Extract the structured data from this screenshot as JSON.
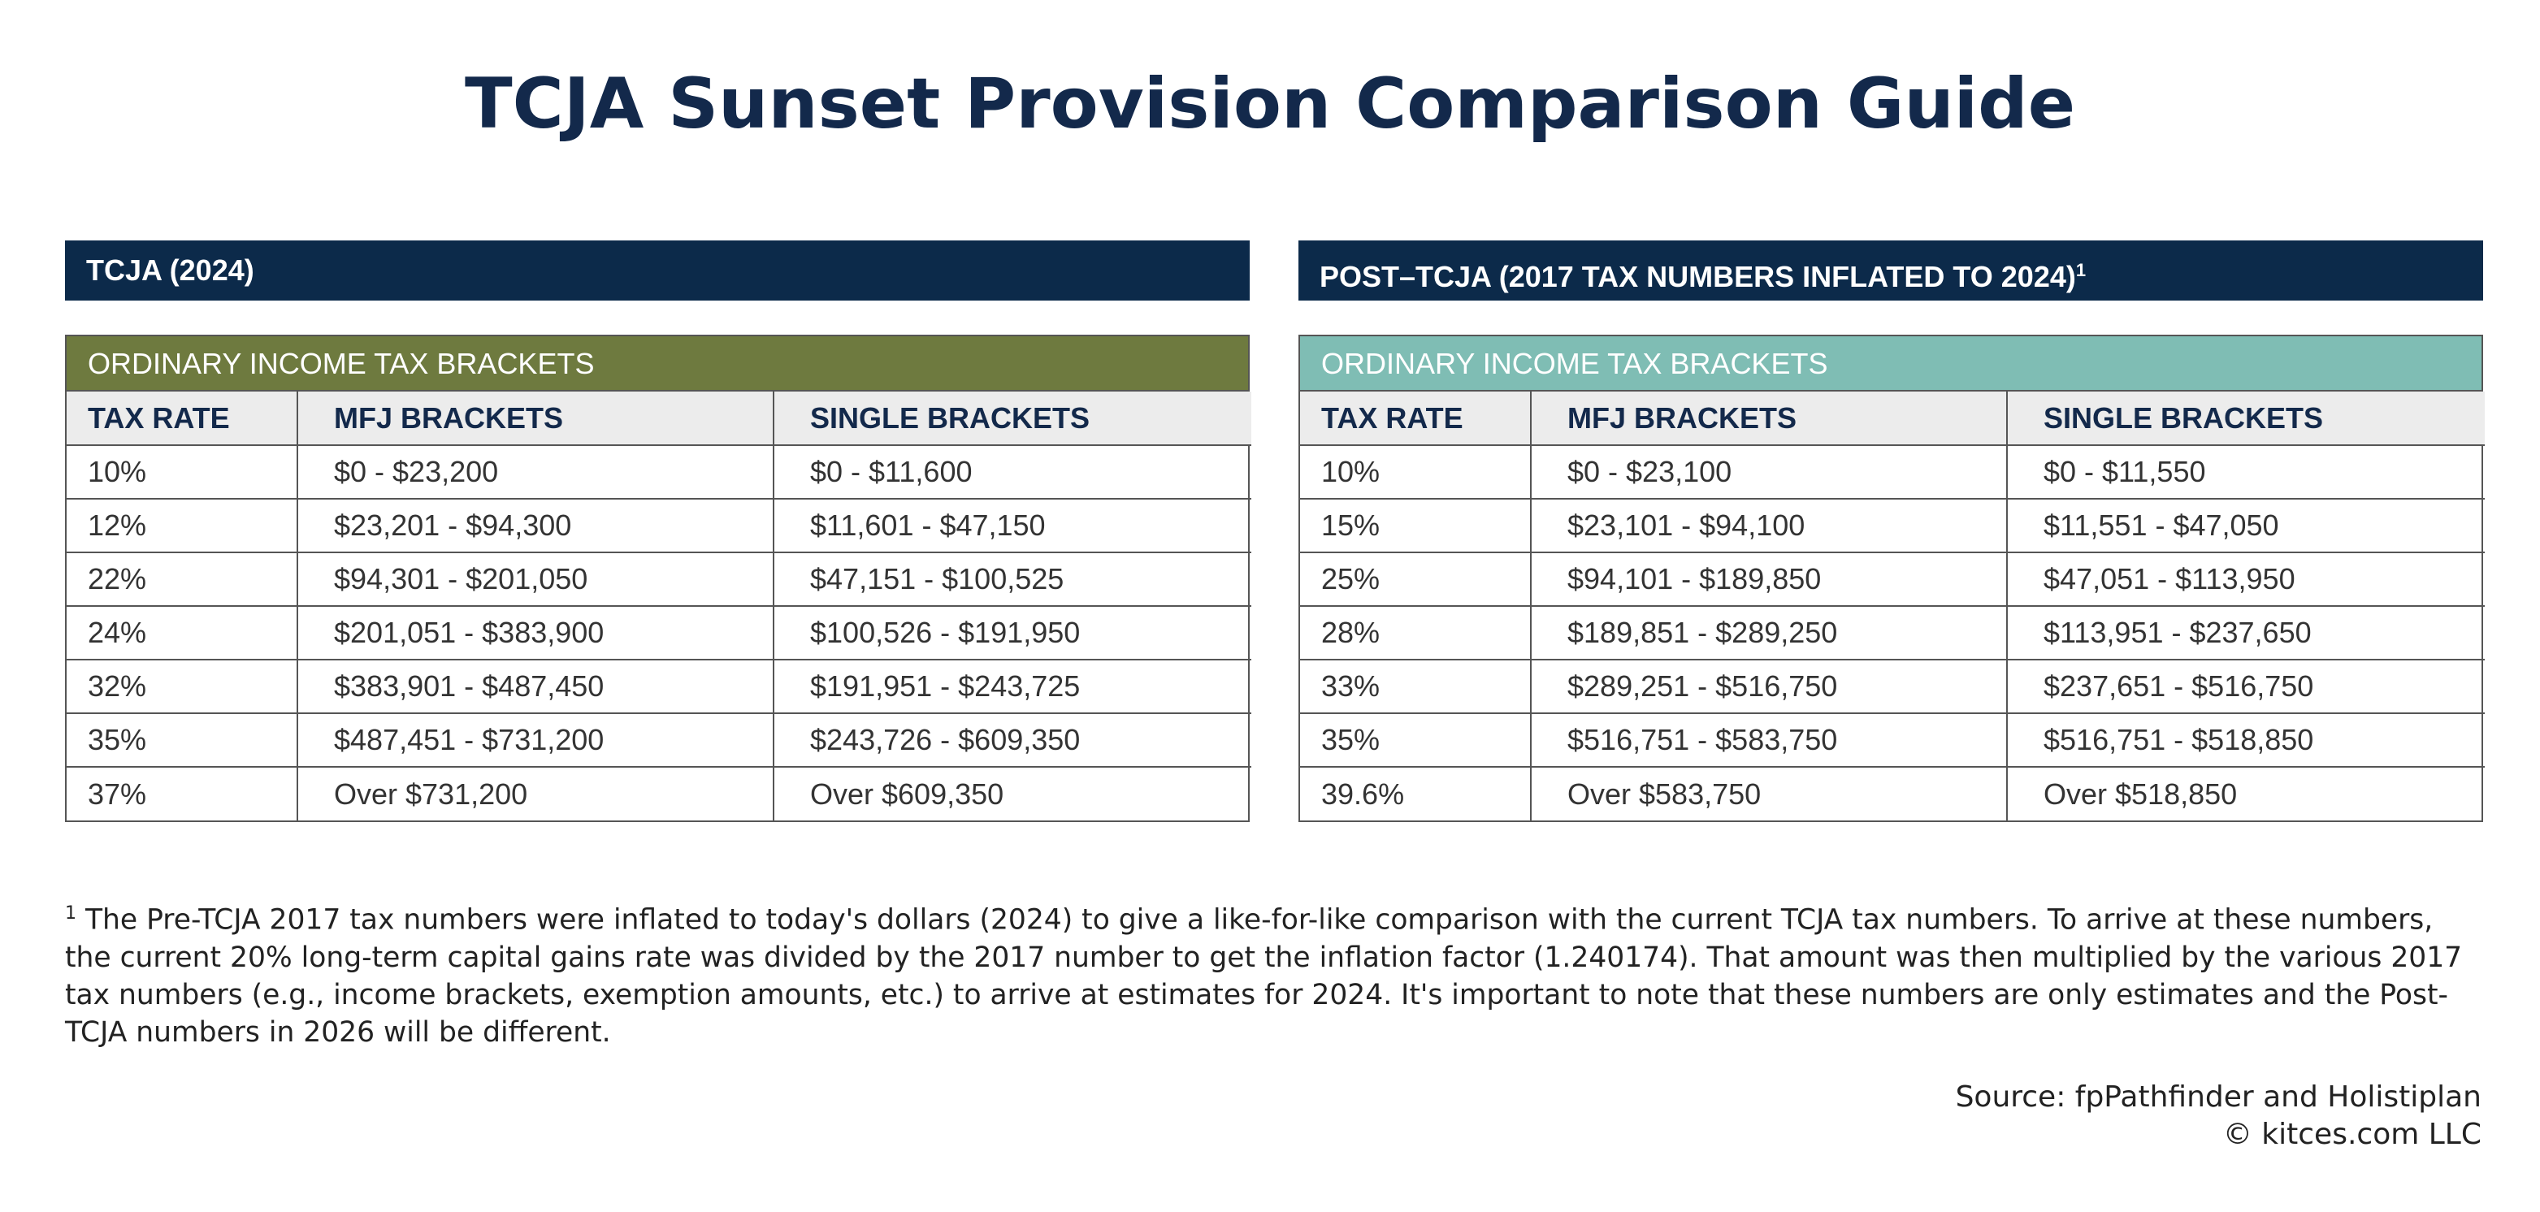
{
  "title": "TCJA Sunset Provision Comparison Guide",
  "panels": [
    {
      "header": "TCJA (2024)",
      "header_sup": "",
      "section": "ORDINARY INCOME TAX BRACKETS",
      "columns": [
        "TAX RATE",
        "MFJ BRACKETS",
        "SINGLE BRACKETS"
      ],
      "rows": [
        [
          "10%",
          "$0 - $23,200",
          "$0 - $11,600"
        ],
        [
          "12%",
          "$23,201 - $94,300",
          "$11,601 - $47,150"
        ],
        [
          "22%",
          "$94,301 - $201,050",
          "$47,151 - $100,525"
        ],
        [
          "24%",
          "$201,051 - $383,900",
          "$100,526 - $191,950"
        ],
        [
          "32%",
          "$383,901 - $487,450",
          "$191,951 - $243,725"
        ],
        [
          "35%",
          "$487,451 - $731,200",
          "$243,726 - $609,350"
        ],
        [
          "37%",
          "Over $731,200",
          "Over $609,350"
        ]
      ]
    },
    {
      "header": "POST–TCJA (2017 TAX NUMBERS INFLATED TO 2024)",
      "header_sup": "1",
      "section": "ORDINARY INCOME TAX BRACKETS",
      "columns": [
        "TAX RATE",
        "MFJ BRACKETS",
        "SINGLE BRACKETS"
      ],
      "rows": [
        [
          "10%",
          "$0 - $23,100",
          "$0 - $11,550"
        ],
        [
          "15%",
          "$23,101 - $94,100",
          "$11,551 - $47,050"
        ],
        [
          "25%",
          "$94,101 - $189,850",
          "$47,051 - $113,950"
        ],
        [
          "28%",
          "$189,851 - $289,250",
          "$113,951 - $237,650"
        ],
        [
          "33%",
          "$289,251 - $516,750",
          "$237,651 - $516,750"
        ],
        [
          "35%",
          "$516,751 - $583,750",
          "$516,751 - $518,850"
        ],
        [
          "39.6%",
          "Over $583,750",
          "Over $518,850"
        ]
      ]
    }
  ],
  "footnote": {
    "marker": "1",
    "text": "The Pre-TCJA 2017 tax numbers were inflated to today's dollars (2024) to give a like-for-like comparison with the current TCJA tax numbers. To arrive at these numbers, the current 20% long-term capital gains rate was divided by the 2017 number to get the inflation factor (1.240174). That amount was then multiplied by the various 2017 tax numbers (e.g., income brackets, exemption amounts, etc.) to arrive at estimates for 2024. It's important to note that these numbers are only estimates and the Post-TCJA numbers in 2026 will be different."
  },
  "source": "Source: fpPathfinder and Holistiplan",
  "copyright": "© kitces.com LLC",
  "colors": {
    "navy": "#0c2a4a",
    "title": "#13294b",
    "olive": "#6e7a3f",
    "teal": "#7fbdb4",
    "header_row": "#ececec"
  }
}
